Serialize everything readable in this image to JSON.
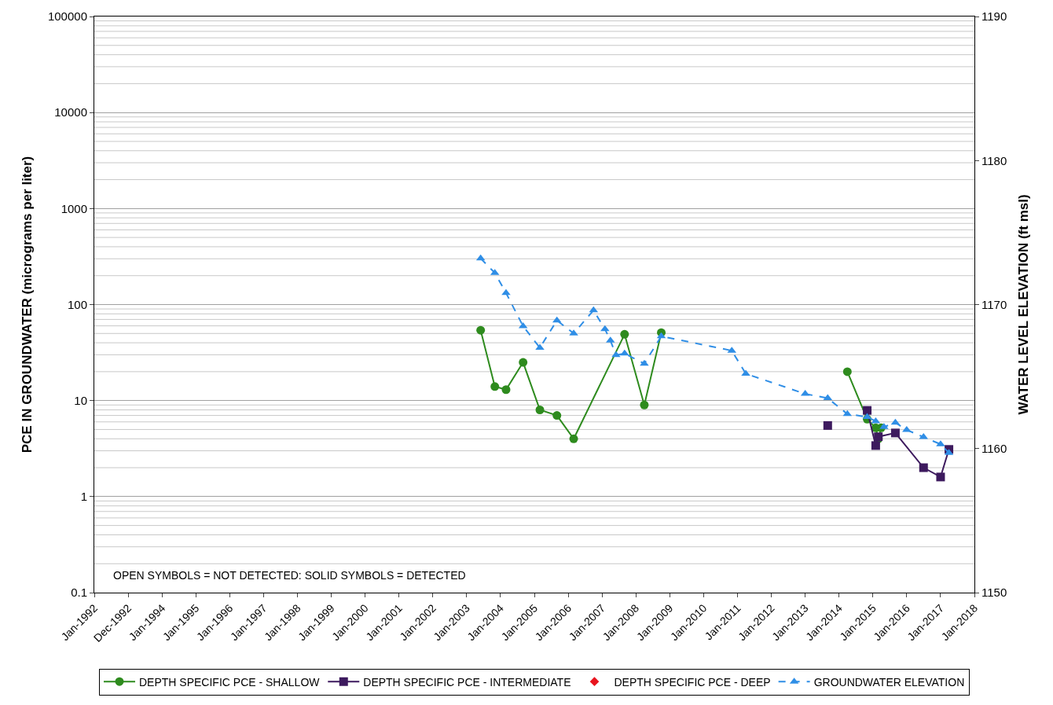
{
  "chart_data": {
    "type": "line",
    "ylabel": "PCE IN GROUNDWATER (micrograms per liter)",
    "y2label": "WATER LEVEL ELEVATION (ft msl)",
    "annotations": [
      "OPEN SYMBOLS = NOT DETECTED: SOLID SYMBOLS = DETECTED"
    ],
    "log": "y",
    "grid": "y",
    "legend": "bottom",
    "ylim": [
      0.1,
      100000
    ],
    "yticks": [
      0.1,
      1,
      10,
      100,
      1000,
      10000,
      100000
    ],
    "y2lim": [
      1150,
      1190
    ],
    "y2ticks": [
      1150,
      1160,
      1170,
      1180,
      1190
    ],
    "xlim": [
      "1992-01-01",
      "2018-01-01"
    ],
    "xticks": [
      {
        "value": "1992-01-01",
        "label": "Jan-1992"
      },
      {
        "value": "1992-12-31",
        "label": "Dec-1992"
      },
      {
        "value": "1994-01-01",
        "label": "Jan-1994"
      },
      {
        "value": "1995-01-01",
        "label": "Jan-1995"
      },
      {
        "value": "1996-01-01",
        "label": "Jan-1996"
      },
      {
        "value": "1997-01-01",
        "label": "Jan-1997"
      },
      {
        "value": "1998-01-01",
        "label": "Jan-1998"
      },
      {
        "value": "1999-01-01",
        "label": "Jan-1999"
      },
      {
        "value": "2000-01-01",
        "label": "Jan-2000"
      },
      {
        "value": "2001-01-01",
        "label": "Jan-2001"
      },
      {
        "value": "2002-01-01",
        "label": "Jan-2002"
      },
      {
        "value": "2003-01-01",
        "label": "Jan-2003"
      },
      {
        "value": "2004-01-01",
        "label": "Jan-2004"
      },
      {
        "value": "2005-01-01",
        "label": "Jan-2005"
      },
      {
        "value": "2006-01-01",
        "label": "Jan-2006"
      },
      {
        "value": "2007-01-01",
        "label": "Jan-2007"
      },
      {
        "value": "2008-01-01",
        "label": "Jan-2008"
      },
      {
        "value": "2009-01-01",
        "label": "Jan-2009"
      },
      {
        "value": "2010-01-01",
        "label": "Jan-2010"
      },
      {
        "value": "2011-01-01",
        "label": "Jan-2011"
      },
      {
        "value": "2012-01-01",
        "label": "Jan-2012"
      },
      {
        "value": "2013-01-01",
        "label": "Jan-2013"
      },
      {
        "value": "2014-01-01",
        "label": "Jan-2014"
      },
      {
        "value": "2015-01-01",
        "label": "Jan-2015"
      },
      {
        "value": "2016-01-01",
        "label": "Jan-2016"
      },
      {
        "value": "2017-01-01",
        "label": "Jan-2017"
      },
      {
        "value": "2018-01-01",
        "label": "Jan-2018"
      }
    ],
    "series": [
      {
        "name": "DEPTH SPECIFIC PCE - SHALLOW",
        "color": "#2e8b1e",
        "marker": "circle",
        "line_style": "solid",
        "x": [
          "2003-06",
          "2003-11",
          "2004-03",
          "2004-09",
          "2005-03",
          "2005-09",
          "2006-03",
          "2007-09",
          "2008-04",
          "2008-10",
          "2011-01",
          "2014-04",
          "2014-11",
          "2015-02",
          "2015-03",
          "2015-04"
        ],
        "values": [
          54,
          14,
          13,
          25,
          8,
          7,
          4,
          49,
          9,
          51,
          null,
          20,
          6.4,
          5.2,
          4,
          5.2
        ]
      },
      {
        "name": "DEPTH SPECIFIC PCE - INTERMEDIATE",
        "color": "#3d1a5e",
        "marker": "square",
        "line_style": "solid",
        "x": [
          "2013-09",
          "2014-03",
          "2014-11",
          "2015-02",
          "2015-03",
          "2015-09",
          "2016-07",
          "2017-01",
          "2017-04"
        ],
        "values": [
          5.5,
          null,
          7.9,
          3.4,
          4.2,
          4.6,
          2,
          1.6,
          3.1
        ]
      },
      {
        "name": "DEPTH SPECIFIC PCE - DEEP",
        "type": "scatter",
        "color": "#e8141e",
        "marker": "diamond"
      },
      {
        "name": "GROUNDWATER ELEVATION",
        "axis": "y2",
        "color": "#2f8ee6",
        "marker": "triangle",
        "line_style": "dashed",
        "x": [
          "2003-06",
          "2003-11",
          "2004-03",
          "2004-09",
          "2005-03",
          "2005-09",
          "2006-03",
          "2006-10",
          "2007-02",
          "2007-04",
          "2007-06",
          "2007-09",
          "2008-04",
          "2008-10",
          "2010-11",
          "2011-04",
          "2013-01",
          "2013-09",
          "2014-04",
          "2014-11",
          "2015-02",
          "2015-05",
          "2015-09",
          "2016-01",
          "2016-07",
          "2017-01",
          "2017-04"
        ],
        "values": [
          1173.2,
          1172.2,
          1170.8,
          1168.5,
          1167,
          1168.9,
          1168,
          1169.6,
          1168.3,
          1167.5,
          1166.5,
          1166.6,
          1165.9,
          1167.8,
          1166.8,
          1165.2,
          1163.8,
          1163.5,
          1162.4,
          1162.2,
          1161.9,
          1161.5,
          1161.8,
          1161.3,
          1160.8,
          1160.3,
          1159.7
        ]
      }
    ]
  }
}
